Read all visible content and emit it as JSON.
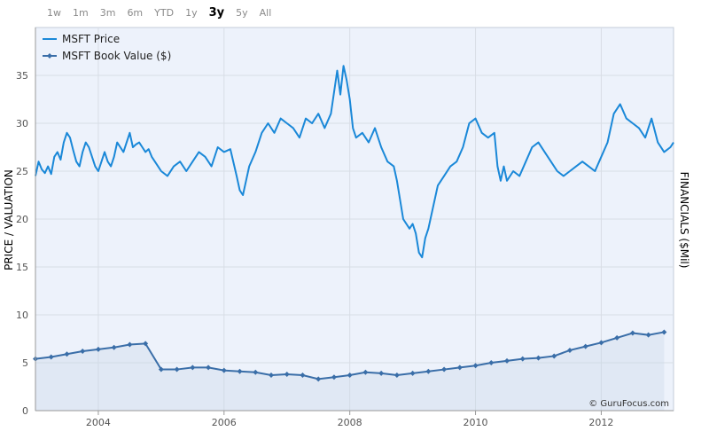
{
  "range_selector": {
    "options": [
      "1w",
      "1m",
      "3m",
      "6m",
      "YTD",
      "1y",
      "3y",
      "5y",
      "All"
    ],
    "active": "3y"
  },
  "colors": {
    "price_line": "#1a88d8",
    "book_line": "#3a6ea8",
    "book_fill": "#c8d6e8",
    "plot_bg": "#edf2fb",
    "grid": "#d8dde5"
  },
  "credit": "© GuruFocus.com",
  "chart_data": {
    "type": "line",
    "y_axis_label": "PRICE / VALUATION",
    "y2_axis_label": "FINANCIALS ($Mil)",
    "ylim": [
      0,
      40
    ],
    "yticks": [
      0,
      5,
      10,
      15,
      20,
      25,
      30,
      35
    ],
    "xlim": [
      2003.0,
      2013.15
    ],
    "xticks": [
      {
        "value": 2004,
        "label": "2004"
      },
      {
        "value": 2006,
        "label": "2006"
      },
      {
        "value": 2008,
        "label": "2008"
      },
      {
        "value": 2010,
        "label": "2010"
      },
      {
        "value": 2012,
        "label": "2012"
      }
    ],
    "grid": true,
    "legend_position": "top-left",
    "series": [
      {
        "name": "MSFT Price",
        "marker": "none",
        "x": [
          2003.0,
          2003.05,
          2003.1,
          2003.15,
          2003.2,
          2003.25,
          2003.3,
          2003.35,
          2003.4,
          2003.45,
          2003.5,
          2003.55,
          2003.6,
          2003.65,
          2003.7,
          2003.75,
          2003.8,
          2003.85,
          2003.9,
          2003.95,
          2004.0,
          2004.05,
          2004.1,
          2004.15,
          2004.2,
          2004.25,
          2004.3,
          2004.35,
          2004.4,
          2004.45,
          2004.5,
          2004.55,
          2004.6,
          2004.65,
          2004.7,
          2004.75,
          2004.8,
          2004.85,
          2004.9,
          2004.95,
          2005.0,
          2005.1,
          2005.2,
          2005.3,
          2005.4,
          2005.5,
          2005.6,
          2005.7,
          2005.8,
          2005.9,
          2006.0,
          2006.1,
          2006.2,
          2006.25,
          2006.3,
          2006.35,
          2006.4,
          2006.5,
          2006.6,
          2006.7,
          2006.8,
          2006.9,
          2007.0,
          2007.1,
          2007.2,
          2007.3,
          2007.4,
          2007.5,
          2007.6,
          2007.7,
          2007.8,
          2007.85,
          2007.9,
          2007.95,
          2008.0,
          2008.05,
          2008.1,
          2008.2,
          2008.3,
          2008.4,
          2008.5,
          2008.6,
          2008.7,
          2008.75,
          2008.8,
          2008.85,
          2008.9,
          2008.95,
          2009.0,
          2009.05,
          2009.1,
          2009.15,
          2009.2,
          2009.25,
          2009.3,
          2009.4,
          2009.5,
          2009.6,
          2009.7,
          2009.8,
          2009.9,
          2010.0,
          2010.1,
          2010.2,
          2010.3,
          2010.35,
          2010.4,
          2010.45,
          2010.5,
          2010.6,
          2010.7,
          2010.8,
          2010.9,
          2011.0,
          2011.1,
          2011.2,
          2011.3,
          2011.4,
          2011.5,
          2011.6,
          2011.7,
          2011.8,
          2011.9,
          2012.0,
          2012.1,
          2012.2,
          2012.3,
          2012.4,
          2012.5,
          2012.6,
          2012.7,
          2012.8,
          2012.9,
          2013.0,
          2013.1,
          2013.15
        ],
        "y": [
          24.5,
          26.0,
          25.2,
          24.8,
          25.5,
          24.7,
          26.5,
          27.0,
          26.2,
          28.0,
          29.0,
          28.5,
          27.2,
          26.0,
          25.5,
          27.0,
          28.0,
          27.5,
          26.5,
          25.5,
          25.0,
          26.0,
          27.0,
          26.0,
          25.5,
          26.5,
          28.0,
          27.5,
          27.0,
          28.0,
          29.0,
          27.5,
          27.8,
          28.0,
          27.5,
          27.0,
          27.3,
          26.5,
          26.0,
          25.5,
          25.0,
          24.5,
          25.5,
          26.0,
          25.0,
          26.0,
          27.0,
          26.5,
          25.5,
          27.5,
          27.0,
          27.3,
          24.5,
          23.0,
          22.5,
          24.0,
          25.5,
          27.0,
          29.0,
          30.0,
          29.0,
          30.5,
          30.0,
          29.5,
          28.5,
          30.5,
          30.0,
          31.0,
          29.5,
          31.0,
          35.5,
          33.0,
          36.0,
          34.5,
          32.5,
          29.5,
          28.5,
          29.0,
          28.0,
          29.5,
          27.5,
          26.0,
          25.5,
          24.0,
          22.0,
          20.0,
          19.5,
          19.0,
          19.5,
          18.5,
          16.5,
          16.0,
          18.0,
          19.0,
          20.5,
          23.5,
          24.5,
          25.5,
          26.0,
          27.5,
          30.0,
          30.5,
          29.0,
          28.5,
          29.0,
          25.5,
          24.0,
          25.5,
          24.0,
          25.0,
          24.5,
          26.0,
          27.5,
          28.0,
          27.0,
          26.0,
          25.0,
          24.5,
          25.0,
          25.5,
          26.0,
          25.5,
          25.0,
          26.5,
          28.0,
          31.0,
          32.0,
          30.5,
          30.0,
          29.5,
          28.5,
          30.5,
          28.0,
          27.0,
          27.5,
          28.0
        ]
      },
      {
        "name": "MSFT Book Value ($)",
        "marker": "diamond",
        "x": [
          2003.0,
          2003.25,
          2003.5,
          2003.75,
          2004.0,
          2004.25,
          2004.5,
          2004.75,
          2005.0,
          2005.25,
          2005.5,
          2005.75,
          2006.0,
          2006.25,
          2006.5,
          2006.75,
          2007.0,
          2007.25,
          2007.5,
          2007.75,
          2008.0,
          2008.25,
          2008.5,
          2008.75,
          2009.0,
          2009.25,
          2009.5,
          2009.75,
          2010.0,
          2010.25,
          2010.5,
          2010.75,
          2011.0,
          2011.25,
          2011.5,
          2011.75,
          2012.0,
          2012.25,
          2012.5,
          2012.75,
          2013.0
        ],
        "y": [
          5.4,
          5.6,
          5.9,
          6.2,
          6.4,
          6.6,
          6.9,
          7.0,
          4.3,
          4.3,
          4.5,
          4.5,
          4.2,
          4.1,
          4.0,
          3.7,
          3.8,
          3.7,
          3.3,
          3.5,
          3.7,
          4.0,
          3.9,
          3.7,
          3.9,
          4.1,
          4.3,
          4.5,
          4.7,
          5.0,
          5.2,
          5.4,
          5.5,
          5.7,
          6.3,
          6.7,
          7.1,
          7.6,
          8.1,
          7.9,
          8.2
        ]
      }
    ]
  }
}
